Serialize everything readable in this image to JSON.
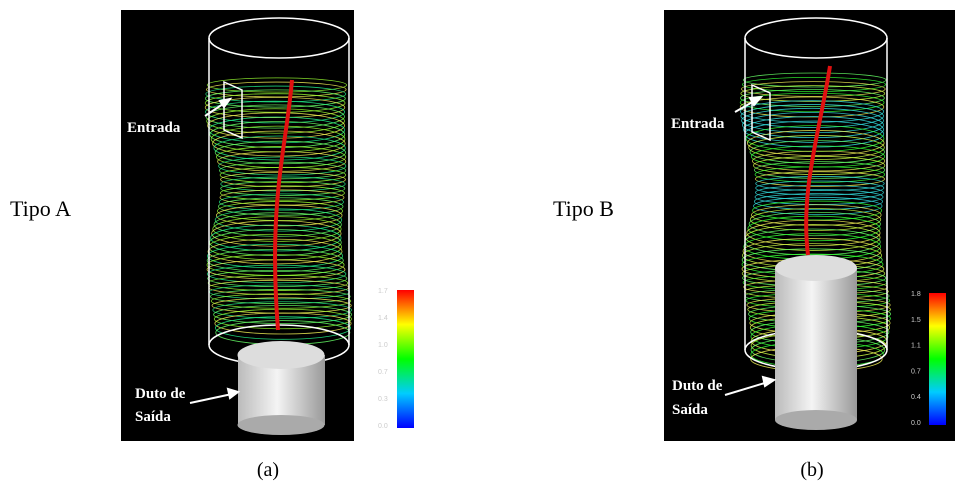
{
  "panels": [
    {
      "row_label": "Tipo A",
      "caption": "(a)",
      "inlet_label": "Entrada",
      "outlet_label": [
        "Duto de",
        "Saída"
      ],
      "colorbar_ticks": [
        "1.7",
        "1.4",
        "1.0",
        "0.7",
        "0.3",
        "0.0"
      ]
    },
    {
      "row_label": "Tipo B",
      "caption": "(b)",
      "inlet_label": "Entrada",
      "outlet_label": [
        "Duto de",
        "Saída"
      ],
      "colorbar_ticks": [
        "1.8",
        "1.5",
        "1.1",
        "0.7",
        "0.4",
        "0.0"
      ]
    }
  ]
}
